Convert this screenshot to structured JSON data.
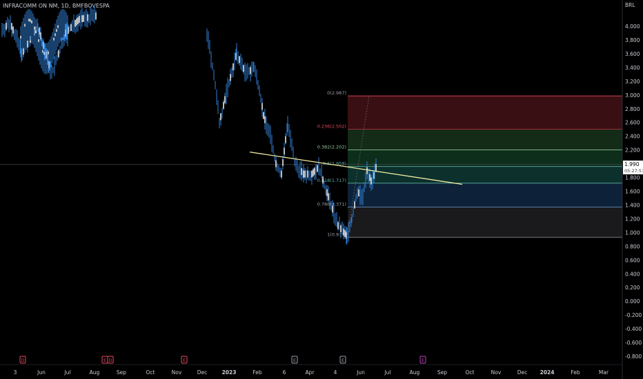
{
  "header": {
    "symbol_line": "INFRACOMM ON NM, 1D, BMFBOVESPA"
  },
  "currency": "BRL",
  "price_badge": {
    "price": "1.990",
    "countdown": "05:27:51",
    "color": "#ffffff"
  },
  "events": [
    {
      "label": "D",
      "date_index": 0,
      "color": "#e84a5f"
    },
    {
      "label": "E",
      "date_index": 1,
      "color": "#e84a5f"
    },
    {
      "label": "D",
      "date_index": 2,
      "color": "#e84a5f"
    },
    {
      "label": "E",
      "date_index": 3,
      "color": "#e84a5f"
    },
    {
      "label": "E",
      "date_index": 4,
      "color": "#9aa0ab"
    },
    {
      "label": "E",
      "date_index": 5,
      "color": "#9aa0ab"
    },
    {
      "label": "E",
      "date_index": 6,
      "color": "#c040c0"
    }
  ],
  "chart_data": {
    "type": "line",
    "y_axis": {
      "ylim": [
        -0.9,
        4.2
      ],
      "ticks": [
        "4.000",
        "3.800",
        "3.600",
        "3.400",
        "3.200",
        "3.000",
        "2.800",
        "2.600",
        "2.400",
        "2.200",
        "2.000",
        "1.800",
        "1.600",
        "1.400",
        "1.200",
        "1.000",
        "0.800",
        "0.600",
        "0.400",
        "0.200",
        "0.000",
        "-0.200",
        "-0.400",
        "-0.600",
        "-0.800"
      ],
      "tick_values": [
        4.0,
        3.8,
        3.6,
        3.4,
        3.2,
        3.0,
        2.8,
        2.6,
        2.4,
        2.2,
        2.0,
        1.8,
        1.6,
        1.4,
        1.2,
        1.0,
        0.8,
        0.6,
        0.4,
        0.2,
        0.0,
        -0.2,
        -0.4,
        -0.6,
        -0.8
      ]
    },
    "x_axis": {
      "labels": [
        "3",
        "Jun",
        "Jul",
        "Aug",
        "Sep",
        "Oct",
        "Nov",
        "Dec",
        "2023",
        "Feb",
        "6",
        "Apr",
        "4",
        "Jun",
        "Jul",
        "Aug",
        "Sep",
        "Oct",
        "Nov",
        "Dec",
        "2024",
        "Feb",
        "Mar"
      ]
    },
    "price_series": {
      "name": "",
      "color": "#2f7fd6",
      "points": [
        [
          0,
          3.95
        ],
        [
          1,
          4.05
        ],
        [
          2,
          3.6
        ],
        [
          3,
          4.0
        ],
        [
          4,
          3.3
        ],
        [
          5,
          3.9
        ],
        [
          6,
          4.1
        ],
        [
          7,
          4.15
        ],
        [
          8,
          3.9
        ],
        [
          9,
          3.3
        ],
        [
          10,
          2.6
        ],
        [
          11,
          3.1
        ],
        [
          12,
          3.6
        ],
        [
          13,
          3.3
        ],
        [
          14,
          3.4
        ],
        [
          15,
          3.1
        ],
        [
          16,
          2.7
        ],
        [
          17,
          2.4
        ],
        [
          18,
          2.0
        ],
        [
          19,
          1.85
        ],
        [
          20,
          2.6
        ],
        [
          21,
          2.0
        ],
        [
          22,
          1.85
        ],
        [
          23,
          1.85
        ],
        [
          24,
          1.95
        ],
        [
          25,
          1.7
        ],
        [
          26,
          1.4
        ],
        [
          27,
          1.1
        ],
        [
          28,
          0.95
        ],
        [
          29,
          1.2
        ],
        [
          30,
          1.6
        ],
        [
          31,
          1.5
        ],
        [
          32,
          1.9
        ],
        [
          33,
          1.75
        ],
        [
          34,
          1.85
        ],
        [
          35,
          1.99
        ]
      ],
      "x_map": [
        [
          0,
          3
        ],
        [
          1,
          15
        ],
        [
          2,
          32
        ],
        [
          3,
          55
        ],
        [
          4,
          75
        ],
        [
          5,
          95
        ],
        [
          6,
          115
        ],
        [
          7,
          140
        ],
        [
          8,
          300
        ],
        [
          9,
          310
        ],
        [
          10,
          318
        ],
        [
          11,
          330
        ],
        [
          12,
          343
        ],
        [
          13,
          357
        ],
        [
          14,
          368
        ],
        [
          15,
          376
        ],
        [
          16,
          382
        ],
        [
          17,
          392
        ],
        [
          18,
          400
        ],
        [
          19,
          408
        ],
        [
          20,
          417
        ],
        [
          21,
          427
        ],
        [
          22,
          440
        ],
        [
          23,
          452
        ],
        [
          24,
          462
        ],
        [
          25,
          470
        ],
        [
          26,
          480
        ],
        [
          27,
          490
        ],
        [
          28,
          503
        ],
        [
          29,
          510
        ],
        [
          30,
          518
        ],
        [
          31,
          526
        ],
        [
          32,
          532
        ],
        [
          33,
          538
        ],
        [
          34,
          543
        ],
        [
          35,
          546
        ]
      ]
    },
    "trendline": {
      "color": "#f5eea0",
      "from": [
        0,
        2.17
      ],
      "to": [
        1,
        1.7
      ]
    },
    "fib_levels": [
      {
        "ratio": "0",
        "value": 2.987,
        "label": "0(2.987)",
        "line": "#ff5a6a",
        "fill": "#3a0f13",
        "text": "#9aa0ab"
      },
      {
        "ratio": "0.236",
        "value": 2.502,
        "label": "0.236(2.502)",
        "line": "#c23744",
        "fill": "#132b17",
        "text": "#e84a5f"
      },
      {
        "ratio": "0.382",
        "value": 2.202,
        "label": "0.382(2.202)",
        "line": "#8fc99a",
        "fill": "#0d2e1a",
        "text": "#8fc99a"
      },
      {
        "ratio": "0.5",
        "value": 1.959,
        "label": "0.5(1.959)",
        "line": "#5fb0a8",
        "fill": "#0c302c",
        "text": "#5fb0a8"
      },
      {
        "ratio": "0.618",
        "value": 1.717,
        "label": "0.618(1.717)",
        "line": "#5fb0a8",
        "fill": "#0d2238",
        "text": "#5fb0a8"
      },
      {
        "ratio": "0.786",
        "value": 1.371,
        "label": "0.786(1.371)",
        "line": "#6aa0d8",
        "fill": "#1a1a1c",
        "text": "#9aa0ab"
      },
      {
        "ratio": "1",
        "value": 0.931,
        "label": "1(0.931)",
        "line": "#9aa0ab",
        "fill": "none",
        "text": "#9aa0ab"
      }
    ],
    "current_price": 1.99,
    "grid": false
  }
}
